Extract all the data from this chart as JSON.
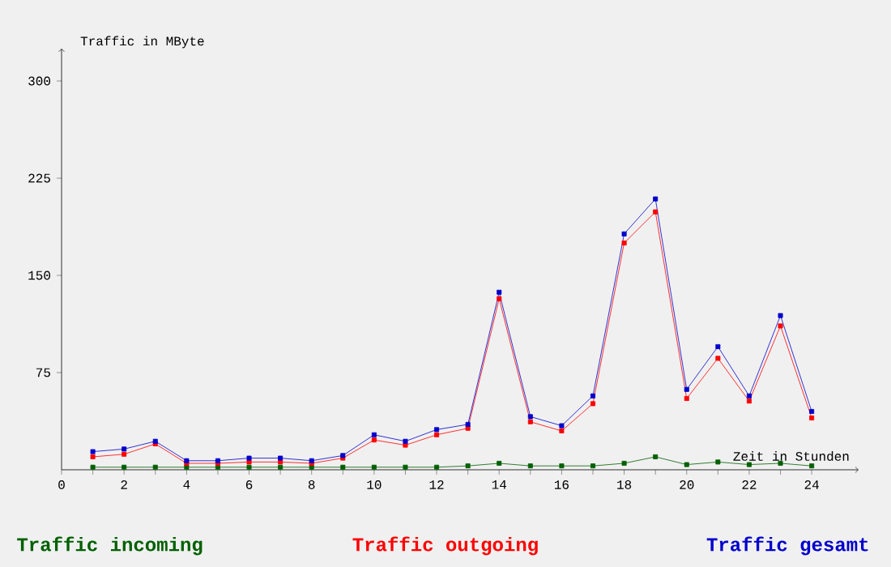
{
  "chart_data": {
    "type": "line",
    "ylabel": "Traffic in MByte",
    "xlabel": "Zeit in Stunden",
    "x": [
      1,
      2,
      3,
      4,
      5,
      6,
      7,
      8,
      9,
      10,
      11,
      12,
      13,
      14,
      15,
      16,
      17,
      18,
      19,
      20,
      21,
      22,
      23,
      24
    ],
    "series": [
      {
        "name": "Traffic incoming",
        "color": "#006000",
        "values": [
          2,
          2,
          2,
          2,
          2,
          2,
          2,
          2,
          2,
          2,
          2,
          2,
          3,
          5,
          3,
          3,
          3,
          5,
          10,
          4,
          6,
          4,
          5,
          3
        ]
      },
      {
        "name": "Traffic outgoing",
        "color": "#ff0000",
        "values": [
          10,
          12,
          20,
          5,
          5,
          6,
          6,
          5,
          9,
          23,
          19,
          27,
          32,
          132,
          37,
          30,
          51,
          175,
          199,
          55,
          86,
          53,
          111,
          40
        ]
      },
      {
        "name": "Traffic gesamt",
        "color": "#0000cc",
        "values": [
          14,
          16,
          22,
          7,
          7,
          9,
          9,
          7,
          11,
          27,
          22,
          31,
          35,
          137,
          41,
          34,
          57,
          182,
          209,
          62,
          95,
          57,
          119,
          45
        ]
      }
    ],
    "xlim": [
      0,
      25.5
    ],
    "ylim": [
      0,
      325
    ],
    "xticks": [
      0,
      2,
      4,
      6,
      8,
      10,
      12,
      14,
      16,
      18,
      20,
      22,
      24
    ],
    "yticks": [
      75,
      150,
      225,
      300
    ],
    "marker": "square",
    "legend": "bottom",
    "grid": false
  }
}
